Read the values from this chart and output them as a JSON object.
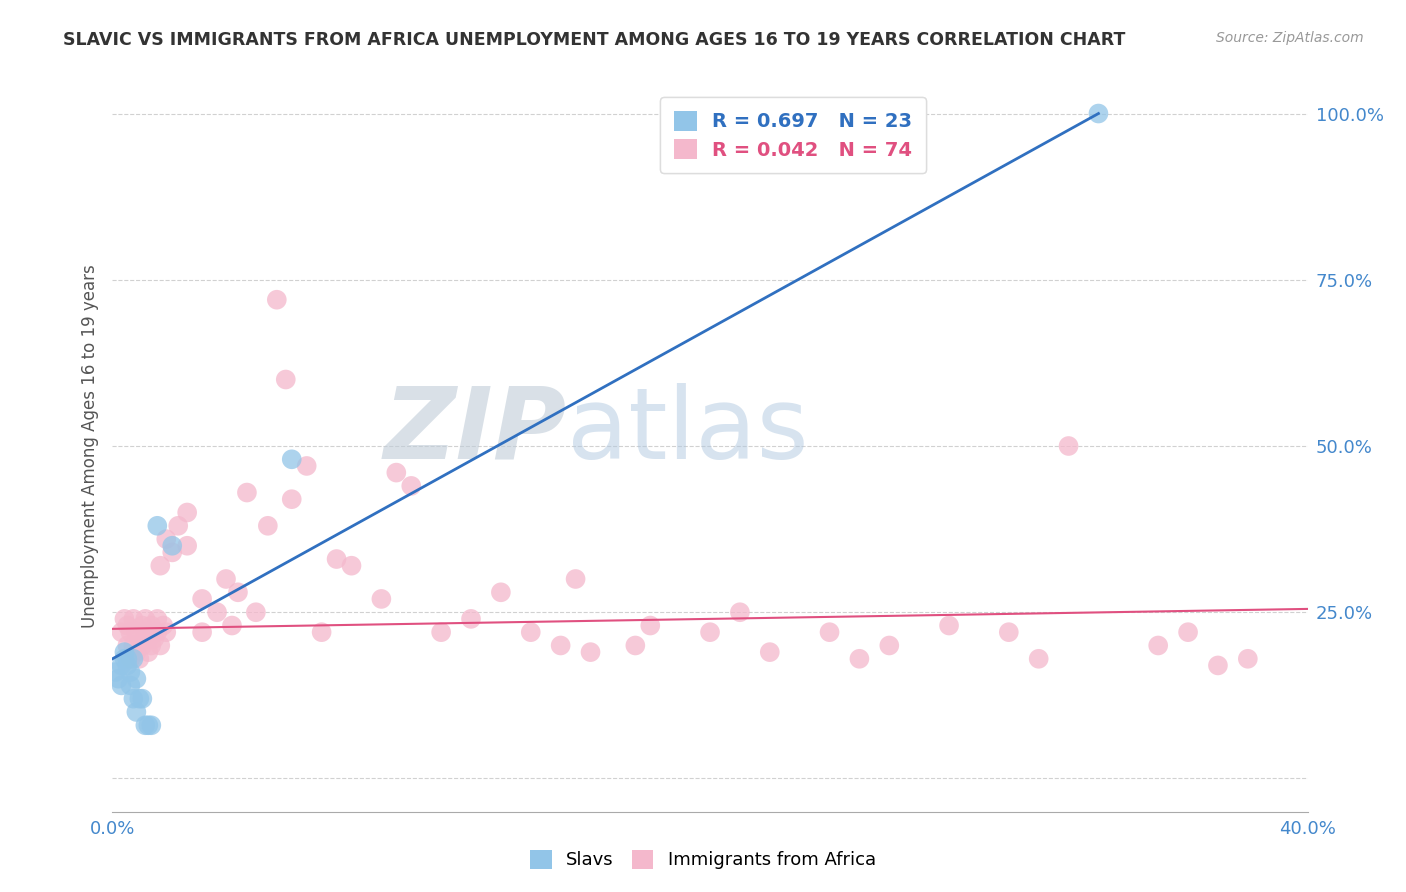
{
  "title": "SLAVIC VS IMMIGRANTS FROM AFRICA UNEMPLOYMENT AMONG AGES 16 TO 19 YEARS CORRELATION CHART",
  "source": "Source: ZipAtlas.com",
  "ylabel": "Unemployment Among Ages 16 to 19 years",
  "xlim": [
    0.0,
    0.4
  ],
  "ylim": [
    -0.05,
    1.05
  ],
  "slavs_R": 0.697,
  "slavs_N": 23,
  "africa_R": 0.042,
  "africa_N": 74,
  "slavs_color": "#92c5e8",
  "africa_color": "#f4b8cc",
  "slavs_line_color": "#3070c0",
  "africa_line_color": "#e05080",
  "background_color": "#ffffff",
  "watermark_zip": "ZIP",
  "watermark_atlas": "atlas",
  "watermark_color_zip": "#c0ccd8",
  "watermark_color_atlas": "#b0c8e0",
  "slavs_x": [
    0.001,
    0.002,
    0.003,
    0.003,
    0.004,
    0.004,
    0.005,
    0.005,
    0.006,
    0.006,
    0.007,
    0.007,
    0.008,
    0.008,
    0.009,
    0.01,
    0.011,
    0.012,
    0.013,
    0.015,
    0.02,
    0.06,
    0.33
  ],
  "slavs_y": [
    0.16,
    0.15,
    0.14,
    0.17,
    0.18,
    0.19,
    0.17,
    0.18,
    0.14,
    0.16,
    0.18,
    0.12,
    0.1,
    0.15,
    0.12,
    0.12,
    0.08,
    0.08,
    0.08,
    0.38,
    0.35,
    0.48,
    1.0
  ],
  "africa_x": [
    0.003,
    0.004,
    0.005,
    0.005,
    0.006,
    0.006,
    0.007,
    0.007,
    0.008,
    0.008,
    0.009,
    0.009,
    0.01,
    0.01,
    0.011,
    0.011,
    0.012,
    0.012,
    0.013,
    0.013,
    0.014,
    0.015,
    0.015,
    0.016,
    0.016,
    0.017,
    0.018,
    0.018,
    0.02,
    0.022,
    0.025,
    0.025,
    0.03,
    0.03,
    0.035,
    0.038,
    0.04,
    0.042,
    0.045,
    0.048,
    0.052,
    0.055,
    0.058,
    0.06,
    0.065,
    0.07,
    0.075,
    0.08,
    0.09,
    0.095,
    0.1,
    0.11,
    0.12,
    0.13,
    0.14,
    0.15,
    0.155,
    0.16,
    0.175,
    0.18,
    0.2,
    0.21,
    0.22,
    0.24,
    0.25,
    0.26,
    0.28,
    0.3,
    0.31,
    0.32,
    0.35,
    0.36,
    0.37,
    0.38
  ],
  "africa_y": [
    0.22,
    0.24,
    0.2,
    0.23,
    0.18,
    0.22,
    0.2,
    0.24,
    0.19,
    0.22,
    0.18,
    0.21,
    0.2,
    0.23,
    0.22,
    0.24,
    0.19,
    0.21,
    0.2,
    0.23,
    0.21,
    0.22,
    0.24,
    0.32,
    0.2,
    0.23,
    0.36,
    0.22,
    0.34,
    0.38,
    0.35,
    0.4,
    0.22,
    0.27,
    0.25,
    0.3,
    0.23,
    0.28,
    0.43,
    0.25,
    0.38,
    0.72,
    0.6,
    0.42,
    0.47,
    0.22,
    0.33,
    0.32,
    0.27,
    0.46,
    0.44,
    0.22,
    0.24,
    0.28,
    0.22,
    0.2,
    0.3,
    0.19,
    0.2,
    0.23,
    0.22,
    0.25,
    0.19,
    0.22,
    0.18,
    0.2,
    0.23,
    0.22,
    0.18,
    0.5,
    0.2,
    0.22,
    0.17,
    0.18
  ]
}
